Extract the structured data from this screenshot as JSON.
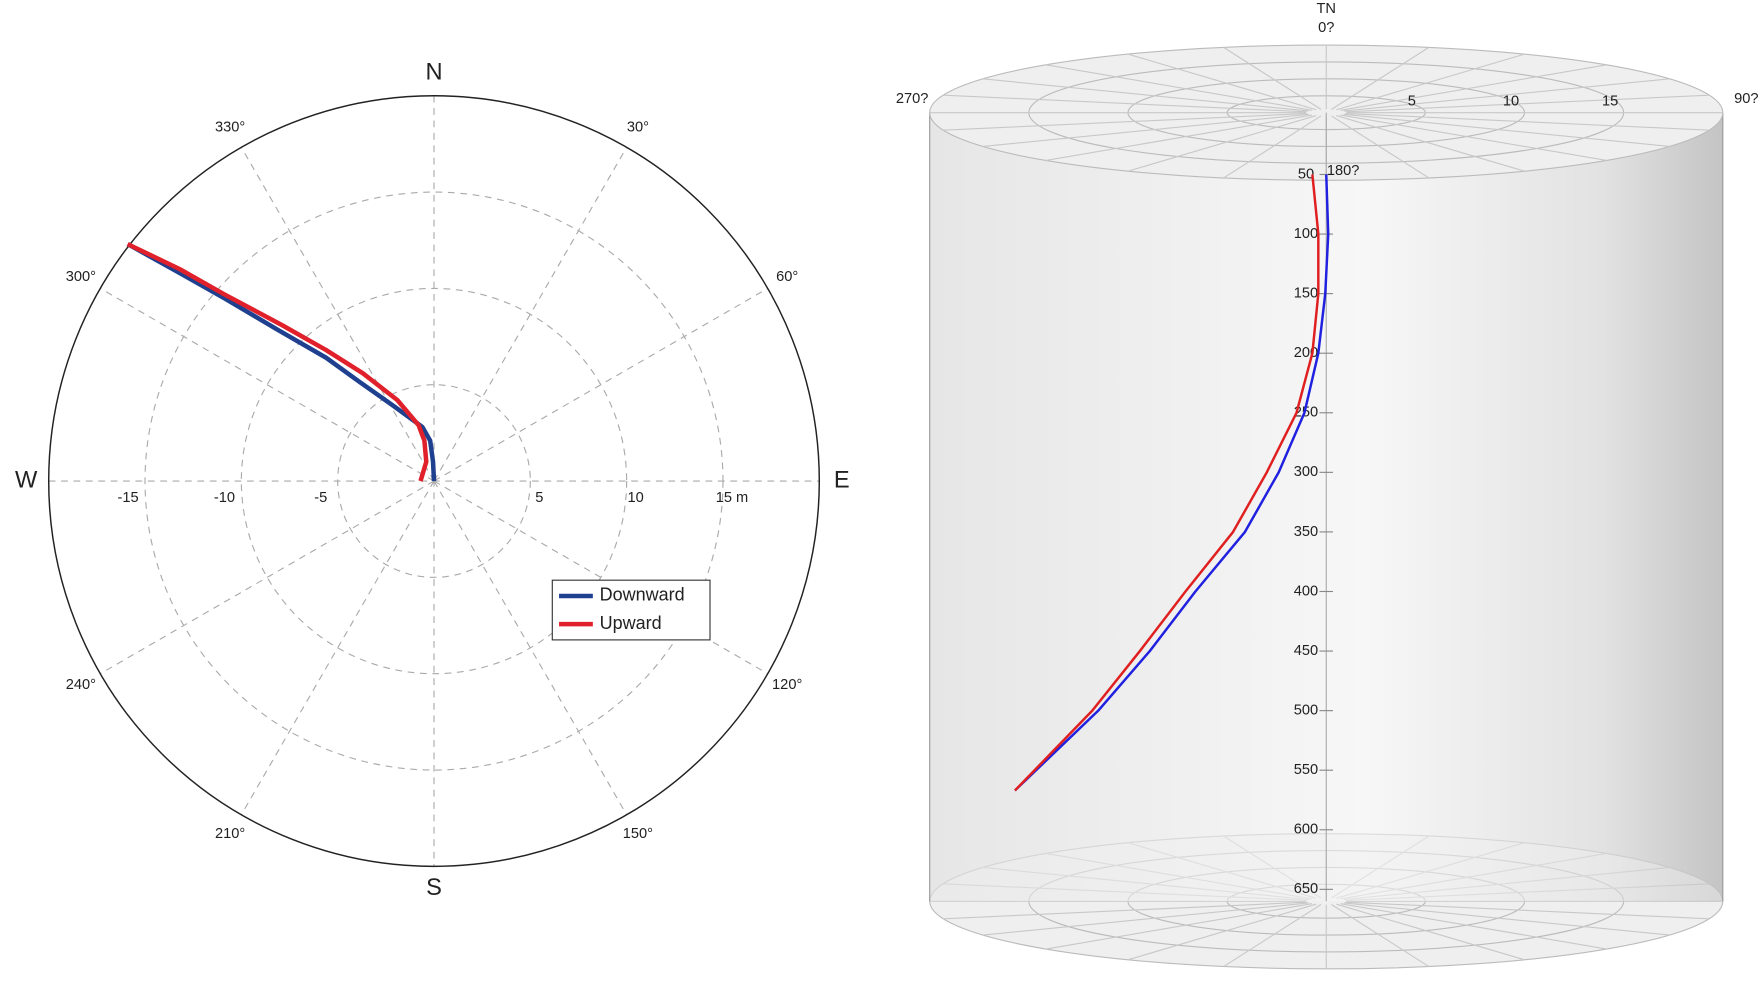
{
  "chart_data": [
    {
      "type": "polar-plan",
      "compass": [
        "N",
        "E",
        "S",
        "W"
      ],
      "thetaticks": [
        {
          "value": 30,
          "label": "30°"
        },
        {
          "value": 60,
          "label": "60°"
        },
        {
          "value": 120,
          "label": "120°"
        },
        {
          "value": 150,
          "label": "150°"
        },
        {
          "value": 210,
          "label": "210°"
        },
        {
          "value": 240,
          "label": "240°"
        },
        {
          "value": 300,
          "label": "300°"
        },
        {
          "value": 330,
          "label": "330°"
        }
      ],
      "xlim": [
        -20,
        20
      ],
      "xticks": [
        -15,
        -10,
        -5,
        5,
        10,
        {
          "value": 15,
          "label": "15 m"
        }
      ],
      "legend": "lower right",
      "series": [
        {
          "name": "Downward",
          "color": "#1f3f8f",
          "x": [
            0,
            -0.05,
            -0.2,
            -0.6,
            -2.1,
            -3.8,
            -5.6,
            -8.2,
            -10.9,
            -13.2,
            -15.9
          ],
          "values": [
            0,
            1,
            2.1,
            2.8,
            3.9,
            5.1,
            6.4,
            7.9,
            9.5,
            10.8,
            12.3
          ]
        },
        {
          "name": "Upward",
          "color": "#e0202a",
          "x": [
            -0.7,
            -0.4,
            -0.5,
            -0.8,
            -1.9,
            -3.7,
            -5.6,
            -7.9,
            -10.9,
            -13.2,
            -15.9
          ],
          "values": [
            0,
            1,
            2.1,
            2.9,
            4.2,
            5.6,
            6.8,
            8.1,
            9.7,
            11,
            12.3
          ]
        }
      ]
    },
    {
      "type": "cylinder",
      "north_label": "TN",
      "direction_labels": [
        "0?",
        "90?",
        "180?",
        "270?"
      ],
      "xlim": [
        -20,
        20
      ],
      "xticks": [
        5,
        10,
        15
      ],
      "ylim": [
        0,
        660
      ],
      "yticks": [
        50,
        100,
        150,
        200,
        250,
        300,
        350,
        400,
        450,
        500,
        550,
        600,
        650
      ],
      "series": [
        {
          "name": "Downward",
          "color": "#2020e0",
          "x": [
            0,
            0.1,
            -0.05,
            -0.4,
            -1.1,
            -2.4,
            -4.1,
            -6.6,
            -8.9,
            -11.5,
            -15.7
          ],
          "values": [
            50,
            100,
            150,
            200,
            250,
            300,
            350,
            400,
            450,
            500,
            567
          ]
        },
        {
          "name": "Upward",
          "color": "#e02020",
          "x": [
            -0.7,
            -0.4,
            -0.4,
            -0.7,
            -1.5,
            -3.0,
            -4.7,
            -7.1,
            -9.4,
            -11.8,
            -15.7
          ],
          "values": [
            50,
            100,
            150,
            200,
            250,
            300,
            350,
            400,
            450,
            500,
            567
          ]
        }
      ]
    }
  ]
}
